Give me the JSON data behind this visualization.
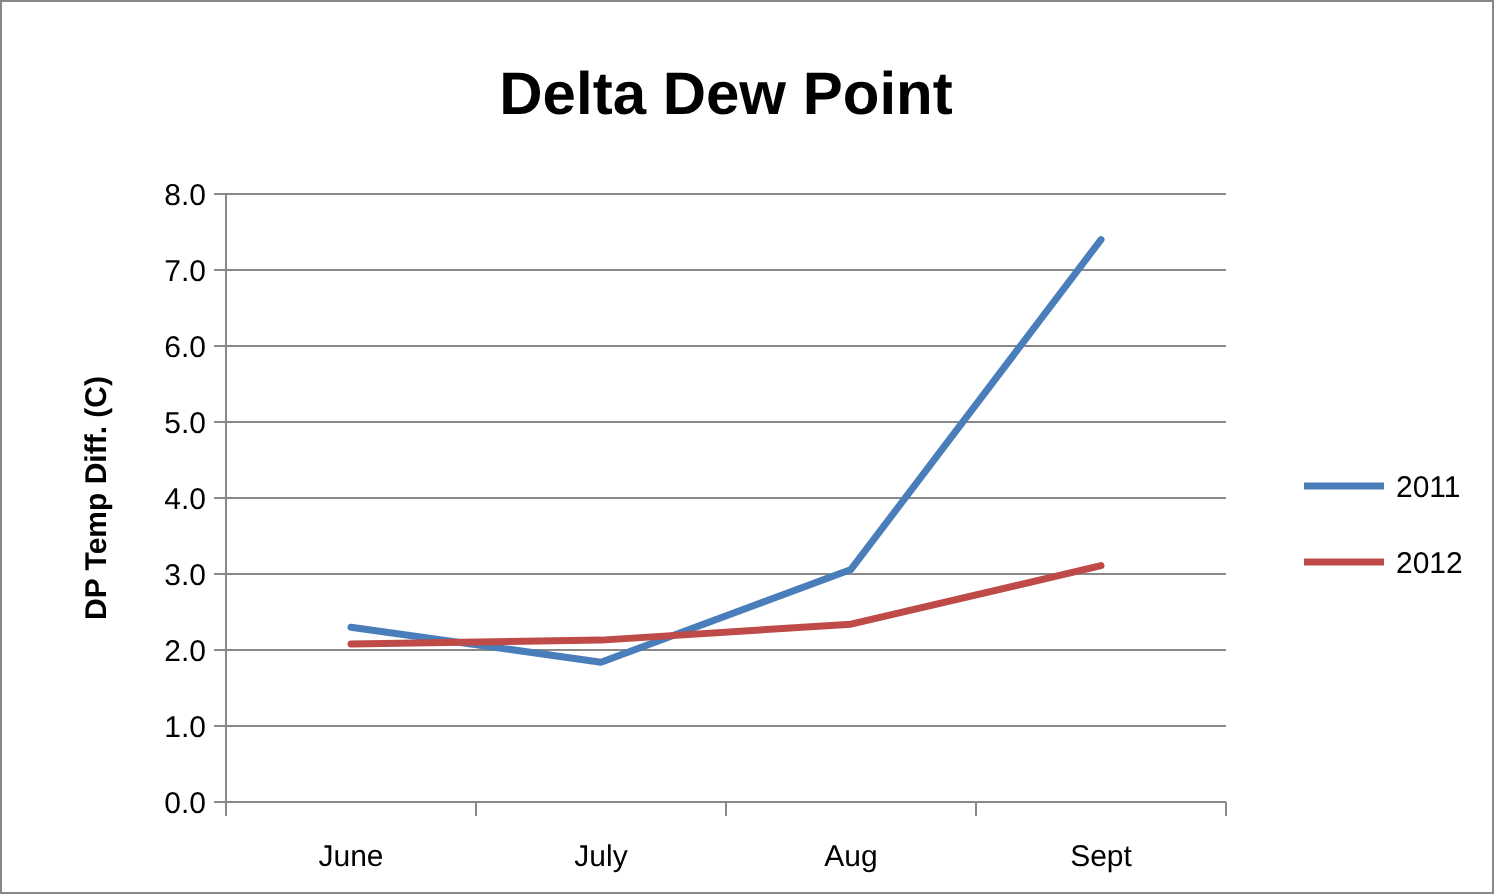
{
  "chart_data": {
    "type": "line",
    "title": "Delta Dew Point",
    "ylabel": "DP Temp Diff. (C)",
    "categories": [
      "June",
      "July",
      "Aug",
      "Sept"
    ],
    "series": [
      {
        "name": "2011",
        "color": "#4a7ebb",
        "values": [
          2.3,
          1.84,
          3.06,
          7.4
        ]
      },
      {
        "name": "2012",
        "color": "#be4b48",
        "values": [
          2.08,
          2.13,
          2.34,
          3.11
        ]
      }
    ],
    "ylim": [
      0,
      8
    ],
    "yticks": [
      {
        "value": 0,
        "label": "0.0"
      },
      {
        "value": 1,
        "label": "1.0"
      },
      {
        "value": 2,
        "label": "2.0"
      },
      {
        "value": 3,
        "label": "3.0"
      },
      {
        "value": 4,
        "label": "4.0"
      },
      {
        "value": 5,
        "label": "5.0"
      },
      {
        "value": 6,
        "label": "6.0"
      },
      {
        "value": 7,
        "label": "7.0"
      },
      {
        "value": 8,
        "label": "8.0"
      }
    ],
    "grid": "y",
    "legend": "right",
    "marker": "none",
    "line_style": "solid"
  }
}
